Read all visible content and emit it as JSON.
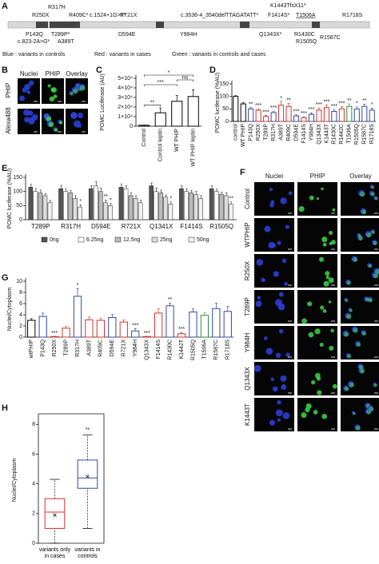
{
  "panel_letters": [
    "A",
    "B",
    "C",
    "D",
    "E",
    "F",
    "G",
    "H"
  ],
  "variant_map": {
    "variants": [
      {
        "label": "R250X",
        "color": "#d0342c"
      },
      {
        "label": "R317H",
        "color": "#34489e"
      },
      {
        "label": "R409C*",
        "color": "#d0342c"
      },
      {
        "label": "c.1524+1G>T*",
        "color": "#d0342c"
      },
      {
        "label": "R721X",
        "color": "#d0342c"
      },
      {
        "label": "c.3536-4_3540delTTAGATATT*",
        "color": "#d0342c"
      },
      {
        "label": "K1443TfsX11*",
        "color": "#d0342c"
      },
      {
        "label": "F1414S*",
        "color": "#d0342c"
      },
      {
        "label": "T1506A",
        "color": "#2e8b3a"
      },
      {
        "label": "R1718S",
        "color": "#34489e"
      },
      {
        "label": "P143Q",
        "color": "#34489e"
      },
      {
        "label": "T289P*",
        "color": "#d0342c"
      },
      {
        "label": "c.823-2A>G*",
        "color": "#d0342c"
      },
      {
        "label": "A389T",
        "color": "#d0342c"
      },
      {
        "label": "D594E",
        "color": "#34489e"
      },
      {
        "label": "Y984H",
        "color": "#34489e"
      },
      {
        "label": "Q1343X*",
        "color": "#d0342c"
      },
      {
        "label": "R1430C",
        "color": "#34489e"
      },
      {
        "label": "R1505Q",
        "color": "#34489e"
      },
      {
        "label": "R1587C",
        "color": "#34489e"
      }
    ],
    "legend": [
      "Blue : variants in controls",
      "Red : variants in cases",
      "Green : variants in controls and cases"
    ],
    "legend_colors": [
      "#34489e",
      "#d0342c",
      "#2e8b3a"
    ]
  },
  "panel_b": {
    "columns": [
      "Nuclei",
      "PHIP",
      "Overlay"
    ],
    "rows": [
      "PHIP",
      "Alexa488"
    ]
  },
  "panel_f": {
    "columns": [
      "Nuclei",
      "PHIP",
      "Overlay"
    ],
    "rows": [
      "Control",
      "WTPHIP",
      "R250X",
      "T289P",
      "Y984H",
      "Q1343X",
      "K1443T"
    ]
  },
  "chart_data": [
    {
      "type": "bar",
      "ylabel": "POMC Luciferase (AU)",
      "categories": [
        "Control",
        "Control leptin",
        "WT PHIP",
        "WT PHIP leptin"
      ],
      "values": [
        1000,
        14000,
        26000,
        31000
      ],
      "errors": [
        300,
        5000,
        6000,
        7000
      ],
      "colors": [
        "#000000",
        "#000000",
        "#000000",
        "#000000"
      ],
      "fill": "#ffffff",
      "ylim": [
        0,
        50000
      ],
      "yticks": [
        0,
        {
          "value": 10000,
          "label": "1×10⁴"
        },
        {
          "value": 20000,
          "label": "2×10⁴"
        },
        {
          "value": 30000,
          "label": "3×10⁴"
        },
        {
          "value": 40000,
          "label": "4×10⁴"
        },
        {
          "value": 50000,
          "label": "5×10⁴"
        }
      ],
      "significance": [
        "**",
        "***",
        "*",
        "ns"
      ]
    },
    {
      "type": "bar",
      "ylabel": "POMC luciferase (%AU)",
      "categories": [
        "control",
        "WT PHIP",
        "P143Q",
        "R250X",
        "T289P",
        "R317H",
        "A389T",
        "R409C",
        "D594E",
        "F1414S",
        "Y984H",
        "Q1343X",
        "K1443T",
        "R1430C",
        "R1442C",
        "T1506A",
        "R1505Q",
        "R1587C",
        "R1718S"
      ],
      "values": [
        100,
        70,
        50,
        45,
        20,
        35,
        65,
        60,
        22,
        15,
        28,
        45,
        55,
        40,
        50,
        60,
        50,
        60,
        45
      ],
      "errors": [
        3,
        5,
        6,
        5,
        4,
        6,
        15,
        12,
        5,
        4,
        6,
        8,
        10,
        8,
        9,
        10,
        8,
        9,
        8
      ],
      "colors": [
        "#000000",
        "#000000",
        "#34489e",
        "#d0342c",
        "#d0342c",
        "#34489e",
        "#d0342c",
        "#d0342c",
        "#34489e",
        "#d0342c",
        "#34489e",
        "#d0342c",
        "#d0342c",
        "#34489e",
        "#d0342c",
        "#2e8b3a",
        "#34489e",
        "#34489e",
        "#34489e"
      ],
      "fill": "#ffffff",
      "stars": [
        null,
        null,
        "**",
        "***",
        "***",
        "***",
        "*",
        "**",
        "***",
        "***",
        "***",
        "***",
        "***",
        "***",
        "***",
        "**",
        "*",
        "**",
        "*"
      ],
      "ylim": [
        0,
        150
      ],
      "yticks": [
        0,
        50,
        100,
        150
      ]
    },
    {
      "type": "grouped_bar",
      "ylabel": "POMC luciferase (%AU)",
      "categories": [
        "T289P",
        "R317H",
        "D594E",
        "R721X",
        "Q1341X",
        "F1414S",
        "R1505Q"
      ],
      "category_colors": [
        "#d0342c",
        "#34489e",
        "#34489e",
        "#d0342c",
        "#d0342c",
        "#d0342c",
        "#34489e"
      ],
      "series": [
        {
          "name": "0ng",
          "color": "#555555",
          "values": [
            115,
            110,
            110,
            115,
            120,
            110,
            110
          ],
          "errors": [
            10,
            12,
            10,
            12,
            10,
            10,
            10
          ],
          "stars": [
            null,
            null,
            null,
            null,
            null,
            null,
            null
          ]
        },
        {
          "name": "6.25ng",
          "color": "#ffffff",
          "values": [
            100,
            100,
            120,
            110,
            100,
            100,
            100
          ],
          "errors": [
            10,
            10,
            15,
            10,
            12,
            10,
            8
          ],
          "stars": [
            null,
            null,
            null,
            null,
            null,
            null,
            null
          ]
        },
        {
          "name": "12.5ng",
          "color": "#bbbbbb",
          "values": [
            95,
            95,
            100,
            85,
            95,
            95,
            90
          ],
          "errors": [
            10,
            8,
            12,
            10,
            10,
            8,
            8
          ],
          "stars": [
            null,
            null,
            null,
            null,
            null,
            null,
            null
          ]
        },
        {
          "name": "25ng",
          "color": "#dddddd",
          "values": [
            85,
            75,
            60,
            75,
            80,
            90,
            85
          ],
          "errors": [
            8,
            10,
            10,
            10,
            8,
            10,
            10
          ],
          "stars": [
            null,
            null,
            "**",
            null,
            null,
            null,
            null
          ]
        },
        {
          "name": "50ng",
          "color": "#f2f2f2",
          "values": [
            60,
            45,
            50,
            60,
            55,
            75,
            55
          ],
          "errors": [
            8,
            8,
            8,
            10,
            8,
            10,
            8
          ],
          "stars": [
            null,
            "*",
            "*",
            null,
            "*",
            null,
            "**"
          ]
        }
      ],
      "ylim": [
        0,
        150
      ],
      "yticks": [
        0,
        50,
        100,
        150
      ]
    },
    {
      "type": "bar",
      "ylabel": "Nuclei/Cytoplasm",
      "categories": [
        "wtPHIP",
        "P143Q",
        "R250X",
        "T289P",
        "R317H",
        "A389T",
        "R409C",
        "D594E",
        "R721X",
        "Y984H",
        "Q1343X",
        "F1414S",
        "R1430C",
        "K1442T",
        "R1505Q",
        "T1506A",
        "R1587C",
        "R1718S"
      ],
      "values": [
        3.0,
        3.7,
        0.1,
        1.6,
        7.3,
        3.1,
        3.0,
        3.5,
        2.7,
        1.1,
        0.1,
        4.3,
        5.6,
        0.6,
        4.5,
        3.9,
        5.1,
        4.6
      ],
      "errors": [
        0.3,
        0.6,
        0.05,
        0.3,
        1.4,
        0.5,
        0.4,
        0.6,
        0.4,
        0.4,
        0.05,
        0.8,
        0.5,
        0.2,
        0.6,
        0.5,
        1.0,
        0.9
      ],
      "colors": [
        "#000000",
        "#34489e",
        "#d0342c",
        "#d0342c",
        "#34489e",
        "#d0342c",
        "#d0342c",
        "#34489e",
        "#d0342c",
        "#34489e",
        "#d0342c",
        "#d0342c",
        "#34489e",
        "#d0342c",
        "#34489e",
        "#2e8b3a",
        "#34489e",
        "#34489e"
      ],
      "fill": "#ffffff",
      "stars": [
        null,
        null,
        "***",
        null,
        "*",
        null,
        null,
        null,
        null,
        "***",
        "***",
        null,
        "**",
        "***",
        null,
        null,
        null,
        null
      ],
      "ylim": [
        0,
        10
      ],
      "yticks": [
        0,
        2,
        4,
        6,
        8,
        10
      ]
    },
    {
      "type": "box",
      "ylabel": "Nuclei/Cytoplasm",
      "categories": [
        "variants only in cases",
        "variants in controls"
      ],
      "boxes": [
        {
          "whisker_low": 0,
          "q1": 1.0,
          "median": 2.1,
          "q3": 3.0,
          "whisker_high": 4.3,
          "mean": 1.9
        },
        {
          "whisker_low": 1.0,
          "q1": 3.7,
          "median": 4.4,
          "q3": 5.6,
          "whisker_high": 7.3,
          "mean": 4.5
        }
      ],
      "colors": [
        "#d0342c",
        "#34489e"
      ],
      "stars": [
        null,
        "**"
      ],
      "ylim": [
        0,
        8.5
      ],
      "yticks": [
        0,
        2,
        4,
        6,
        8
      ]
    }
  ]
}
